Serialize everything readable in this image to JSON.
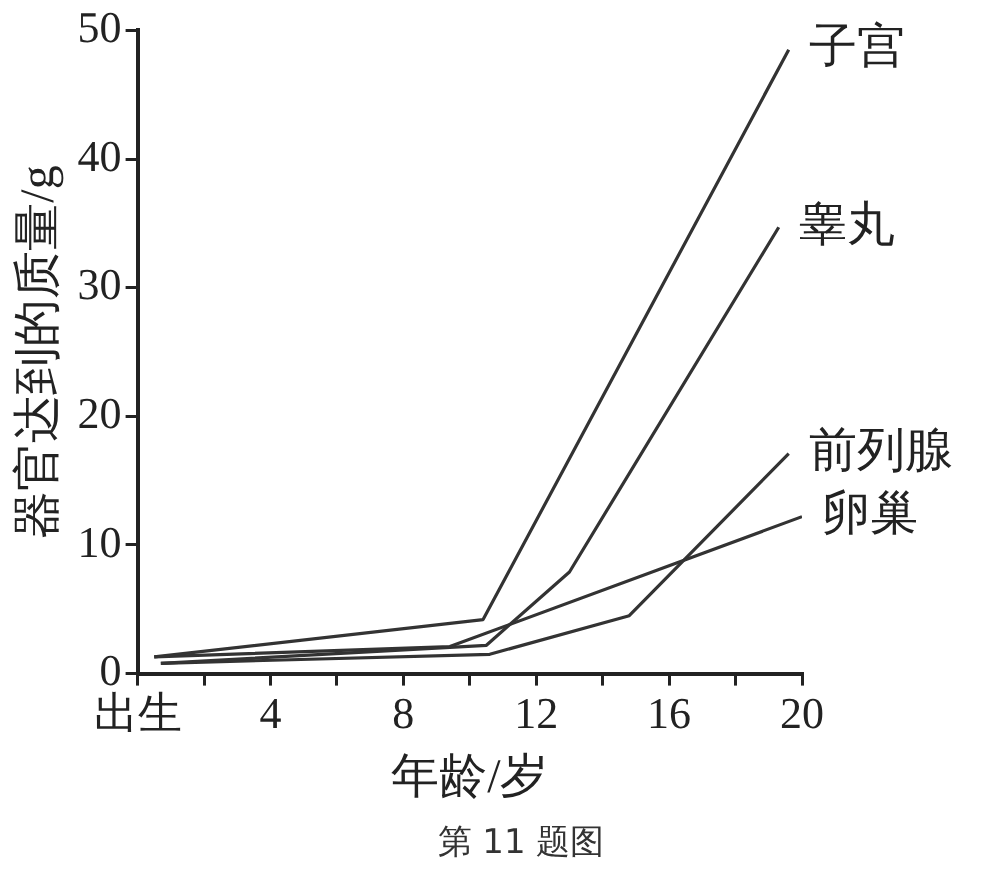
{
  "chart_data": {
    "type": "line",
    "xlabel": "年龄/岁",
    "ylabel": "器官达到的质量/g",
    "annotations": [
      "第 11 题图"
    ],
    "xlim": [
      0,
      20
    ],
    "xticks": [
      {
        "value": 0,
        "label": "出生"
      },
      {
        "value": 2,
        "label": null
      },
      4,
      {
        "value": 6,
        "label": null
      },
      8,
      {
        "value": 10,
        "label": null
      },
      12,
      {
        "value": 14,
        "label": null
      },
      16,
      {
        "value": 18,
        "label": null
      },
      20
    ],
    "ylim": [
      0,
      50
    ],
    "yticks": [
      0,
      10,
      20,
      30,
      40,
      50
    ],
    "grid": false,
    "legend": false,
    "marker": "none",
    "line_style": "solid",
    "series": [
      {
        "name": "子宫",
        "color": "#333333",
        "x": [
          0.5,
          10.4,
          19.6
        ],
        "values": [
          1.3,
          4.2,
          48.5
        ]
      },
      {
        "name": "睾丸",
        "color": "#333333",
        "x": [
          0.7,
          10.5,
          13,
          19.3
        ],
        "values": [
          0.8,
          2.2,
          7.9,
          34.7
        ]
      },
      {
        "name": "前列腺",
        "color": "#333333",
        "x": [
          0.7,
          10.6,
          14.8,
          19.6
        ],
        "values": [
          0.8,
          1.5,
          4.5,
          17.1
        ]
      },
      {
        "name": "卵巢",
        "color": "#333333",
        "x": [
          0.5,
          9.4,
          20
        ],
        "values": [
          1.3,
          2.1,
          12.2
        ]
      }
    ]
  }
}
